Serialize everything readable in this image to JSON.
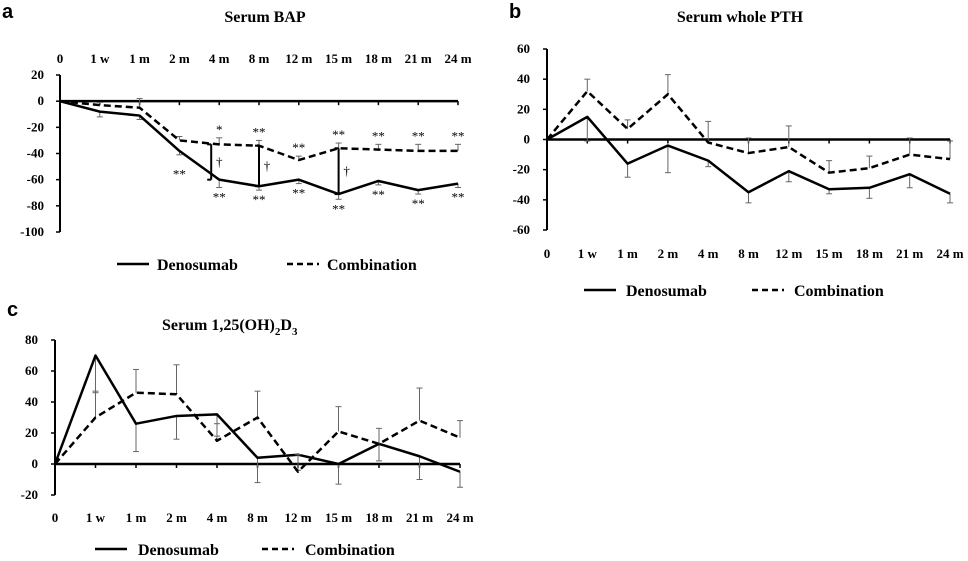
{
  "chart_data": [
    {
      "type": "line",
      "panel": "a",
      "title": "Serum BAP",
      "categories": [
        "0",
        "1 w",
        "1 m",
        "2 m",
        "4 m",
        "8 m",
        "12 m",
        "15 m",
        "18 m",
        "21 m",
        "24 m"
      ],
      "ylim": [
        -100,
        20
      ],
      "yticks": [
        20,
        0,
        -20,
        -40,
        -60,
        -80,
        -100
      ],
      "series": [
        {
          "name": "Denosumab",
          "style": "solid",
          "values": [
            0,
            -8,
            -11,
            -38,
            -60,
            -65,
            -60,
            -71,
            -61,
            -68,
            -63
          ],
          "err": [
            0,
            4,
            3,
            3,
            6,
            3,
            3,
            4,
            3,
            3,
            3
          ],
          "err_dir": "down"
        },
        {
          "name": "Combination",
          "style": "dashed",
          "values": [
            0,
            -3,
            -5,
            -30,
            -33,
            -34,
            -45,
            -36,
            -37,
            -38,
            -38
          ],
          "err": [
            0,
            2,
            7,
            3,
            5,
            4,
            3,
            4,
            4,
            5,
            5
          ],
          "err_dir": "up"
        }
      ],
      "annotations": {
        "combination_marks": [
          "",
          "",
          "",
          "",
          "*",
          "**",
          "**",
          "**",
          "**",
          "**",
          "**"
        ],
        "denosumab_marks": [
          "",
          "",
          "",
          "**",
          "**",
          "**",
          "**",
          "**",
          "**",
          "**",
          "**"
        ],
        "dagger_points": [
          "4 m",
          "8 m",
          "15 m"
        ],
        "dagger_symbol": "†"
      },
      "legend": {
        "items": [
          "Denosumab",
          "Combination"
        ],
        "placement": "bottom"
      }
    },
    {
      "type": "line",
      "panel": "b",
      "title": "Serum whole PTH",
      "categories": [
        "0",
        "1 w",
        "1 m",
        "2 m",
        "4 m",
        "8 m",
        "12 m",
        "15 m",
        "18 m",
        "21 m",
        "24 m"
      ],
      "ylim": [
        -60,
        60
      ],
      "yticks": [
        60,
        40,
        20,
        0,
        -20,
        -40,
        -60
      ],
      "series": [
        {
          "name": "Denosumab",
          "style": "solid",
          "values": [
            0,
            15,
            -16,
            -4,
            -14,
            -35,
            -21,
            -33,
            -32,
            -23,
            -36
          ],
          "err": [
            0,
            16,
            9,
            18,
            4,
            7,
            7,
            3,
            7,
            9,
            6
          ],
          "err_dir": "down"
        },
        {
          "name": "Combination",
          "style": "dashed",
          "values": [
            0,
            32,
            7,
            30,
            -2,
            -9,
            -5,
            -22,
            -19,
            -10,
            -13
          ],
          "err": [
            0,
            8,
            6,
            13,
            14,
            10,
            14,
            8,
            8,
            11,
            12
          ],
          "err_dir": "up"
        }
      ],
      "legend": {
        "items": [
          "Denosumab",
          "Combination"
        ],
        "placement": "bottom"
      }
    },
    {
      "type": "line",
      "panel": "c",
      "title_main": "Serum 1,25(OH)",
      "title_sub1": "2",
      "title_mid": "D",
      "title_sub2": "3",
      "categories": [
        "0",
        "1 w",
        "1 m",
        "2 m",
        "4 m",
        "8 m",
        "12 m",
        "15 m",
        "18 m",
        "21 m",
        "24 m"
      ],
      "ylim": [
        -20,
        80
      ],
      "yticks": [
        80,
        60,
        40,
        20,
        0,
        -20
      ],
      "series": [
        {
          "name": "Denosumab",
          "style": "solid",
          "values": [
            0,
            70,
            26,
            31,
            32,
            4,
            6,
            0,
            13,
            5,
            -5
          ],
          "err": [
            0,
            24,
            18,
            15,
            14,
            16,
            10,
            13,
            11,
            15,
            10
          ],
          "err_dir": "down"
        },
        {
          "name": "Combination",
          "style": "dashed",
          "values": [
            0,
            30,
            46,
            45,
            15,
            30,
            -5,
            21,
            13,
            28,
            17
          ],
          "err": [
            0,
            17,
            15,
            19,
            11,
            17,
            11,
            16,
            10,
            21,
            11
          ],
          "err_dir": "up"
        }
      ],
      "legend": {
        "items": [
          "Denosumab",
          "Combination"
        ],
        "placement": "bottom"
      }
    }
  ]
}
